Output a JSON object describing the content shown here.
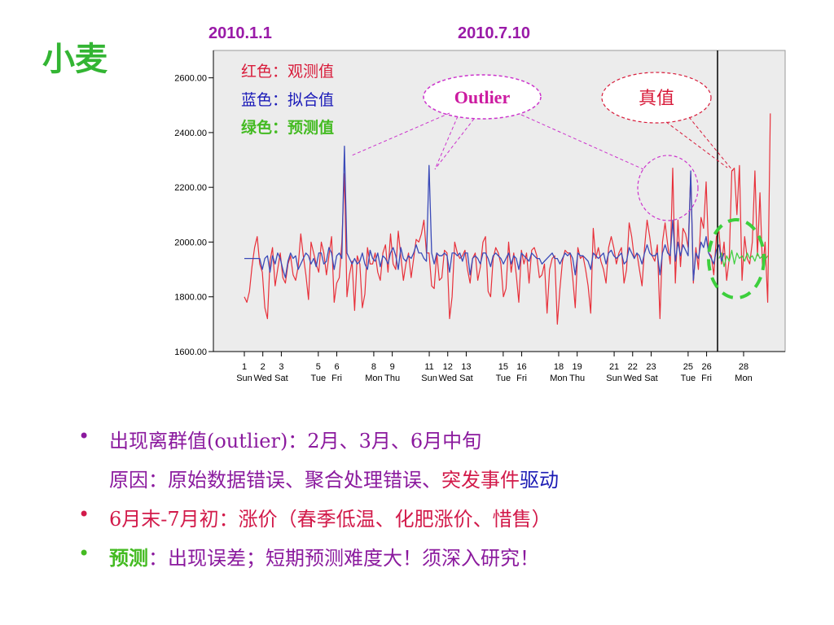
{
  "slide": {
    "title": "小麦",
    "date_labels": [
      "2010.1.1",
      "2010.7.10"
    ]
  },
  "legend": {
    "observed": "红色：观测值",
    "fitted": "蓝色：拟合值",
    "predicted": "绿色：预测值"
  },
  "annotations": {
    "outlier": "Outlier",
    "true_value": "真值"
  },
  "colors": {
    "observed": "#e8303a",
    "fitted": "#3a4ab8",
    "predicted": "#3ccf3c",
    "plot_bg": "#ececec",
    "annotation": "#cc33cc",
    "title": "#33b533"
  },
  "chart_data": {
    "type": "line",
    "ylim": [
      1600,
      2700
    ],
    "yticks": [
      "1600.00",
      "1800.00",
      "2000.00",
      "2200.00",
      "2400.00",
      "2600.00"
    ],
    "xticks": [
      {
        "day": "1",
        "weekday": "Sun"
      },
      {
        "day": "2",
        "weekday": "Wed"
      },
      {
        "day": "3",
        "weekday": "Sat"
      },
      {
        "day": "5",
        "weekday": "Tue"
      },
      {
        "day": "6",
        "weekday": "Fri"
      },
      {
        "day": "8",
        "weekday": "Mon"
      },
      {
        "day": "9",
        "weekday": "Thu"
      },
      {
        "day": "11",
        "weekday": "Sun"
      },
      {
        "day": "12",
        "weekday": "Wed"
      },
      {
        "day": "13",
        "weekday": "Sat"
      },
      {
        "day": "15",
        "weekday": "Tue"
      },
      {
        "day": "16",
        "weekday": "Fri"
      },
      {
        "day": "18",
        "weekday": "Mon"
      },
      {
        "day": "19",
        "weekday": "Thu"
      },
      {
        "day": "21",
        "weekday": "Sun"
      },
      {
        "day": "22",
        "weekday": "Wed"
      },
      {
        "day": "23",
        "weekday": "Sat"
      },
      {
        "day": "25",
        "weekday": "Tue"
      },
      {
        "day": "26",
        "weekday": "Fri"
      },
      {
        "day": "28",
        "weekday": "Mon"
      }
    ],
    "forecast_start_index": 185,
    "series": [
      {
        "name": "红色：观测值",
        "values": [
          1800,
          1780,
          1820,
          1910,
          1980,
          2020,
          1920,
          1890,
          1760,
          1720,
          1930,
          1980,
          1840,
          1900,
          1960,
          1870,
          1850,
          1920,
          1950,
          1880,
          1860,
          1910,
          2030,
          1950,
          1880,
          1790,
          2000,
          1960,
          1920,
          1890,
          2000,
          1960,
          1880,
          1950,
          2020,
          1780,
          1850,
          1870,
          2000,
          2250,
          1800,
          1880,
          1930,
          1750,
          1950,
          1920,
          1760,
          1810,
          1980,
          1920,
          1920,
          1960,
          1890,
          1860,
          1960,
          1990,
          1890,
          2030,
          1920,
          1900,
          2040,
          1950,
          1860,
          1920,
          1960,
          1870,
          1940,
          2010,
          2000,
          2030,
          2080,
          1960,
          1960,
          1840,
          1830,
          1960,
          1860,
          1870,
          1970,
          1960,
          1720,
          1800,
          2000,
          1960,
          1940,
          1950,
          1970,
          1900,
          1850,
          1940,
          1960,
          1860,
          1910,
          2000,
          2020,
          1820,
          1800,
          1940,
          1980,
          1960,
          1920,
          1800,
          1830,
          2000,
          1890,
          1960,
          1880,
          1780,
          1970,
          1920,
          1960,
          1850,
          1970,
          1980,
          1950,
          1870,
          1880,
          1920,
          1740,
          1900,
          1940,
          1950,
          1700,
          1830,
          1930,
          1970,
          1960,
          1960,
          1870,
          1760,
          1980,
          1940,
          1950,
          1900,
          1840,
          1740,
          2050,
          1940,
          1980,
          1930,
          1900,
          1850,
          1980,
          2020,
          1980,
          1920,
          1960,
          1980,
          1850,
          1900,
          2070,
          2020,
          1940,
          1960,
          1900,
          1840,
          1980,
          2080,
          2020,
          1950,
          1930,
          1990,
          1720,
          2000,
          2070,
          1990,
          1920,
          2270,
          1850,
          2080,
          1910,
          2050,
          2030,
          1980,
          2250,
          1850,
          1980,
          1900,
          2090,
          2050,
          2220,
          1960,
          1950,
          1880,
          2020,
          2040,
          1920,
          2000,
          1860,
          1940,
          2260,
          2270,
          2100,
          2280,
          1860,
          2020,
          1940,
          1920,
          2000,
          2260,
          1950,
          2180,
          1900,
          2000,
          1780,
          2470
        ]
      },
      {
        "name": "蓝色：拟合值",
        "values": [
          1940,
          1940,
          1940,
          1940,
          1940,
          1940,
          1940,
          1900,
          1940,
          1950,
          1890,
          1950,
          1920,
          1960,
          1940,
          1900,
          1870,
          1930,
          1960,
          1940,
          1950,
          1900,
          1920,
          1940,
          1960,
          1950,
          1920,
          1940,
          1910,
          1960,
          1960,
          1920,
          1930,
          1980,
          1960,
          1900,
          1950,
          1960,
          1940,
          2350,
          1960,
          1940,
          1920,
          1940,
          1920,
          1930,
          1960,
          1920,
          1900,
          1970,
          1940,
          1930,
          1960,
          1910,
          1950,
          1940,
          1920,
          1960,
          1980,
          1950,
          1900,
          1980,
          1940,
          1930,
          1950,
          1940,
          1960,
          1990,
          1960,
          1960,
          1940,
          1930,
          2280,
          1960,
          1920,
          1960,
          1950,
          1950,
          1960,
          1950,
          1890,
          1960,
          1960,
          1950,
          1960,
          1930,
          1960,
          1960,
          1880,
          1940,
          1950,
          1940,
          1920,
          1960,
          1960,
          1940,
          1910,
          1950,
          1960,
          1950,
          1940,
          1920,
          1940,
          1960,
          1920,
          1950,
          1940,
          1900,
          1960,
          1950,
          1940,
          1930,
          1960,
          1950,
          1940,
          1940,
          1920,
          1930,
          1940,
          1950,
          1960,
          1940,
          1940,
          1920,
          1940,
          1960,
          1950,
          1960,
          1940,
          1880,
          1960,
          1950,
          1950,
          1940,
          1930,
          1900,
          1960,
          1950,
          1940,
          1950,
          1960,
          1920,
          1960,
          1970,
          1950,
          1940,
          1950,
          1960,
          1920,
          1930,
          1980,
          1960,
          1940,
          1960,
          1950,
          1920,
          1960,
          1990,
          1960,
          1950,
          1950,
          1960,
          1880,
          1960,
          1990,
          1960,
          1950,
          2080,
          1930,
          2000,
          1950,
          1990,
          1970,
          1950,
          2260,
          1860,
          1960,
          1940,
          2000,
          1980,
          2020,
          1960,
          1940,
          1920,
          1970,
          1990,
          1930,
          1960
        ]
      },
      {
        "name": "绿色：预测值",
        "values": [
          1940,
          1960,
          1910,
          1950,
          1930,
          1970,
          1920,
          1960,
          1940,
          1950,
          1930,
          1960,
          1940,
          1950,
          1930,
          1960,
          1940,
          1950,
          1935,
          1950
        ]
      }
    ]
  },
  "bullets": [
    {
      "main": "出现离群值(outlier)：2月、3月、6月中旬",
      "sub_a": "原因：原始数据错误、聚合处理错误、",
      "sub_b": "突发事件",
      "sub_c": "驱动"
    },
    {
      "main": "6月末-7月初：涨价（春季低温、化肥涨价、惜售）"
    },
    {
      "main_a": "预测",
      "main_b": "：出现误差；短期预测难度大！须深入研究！"
    }
  ]
}
